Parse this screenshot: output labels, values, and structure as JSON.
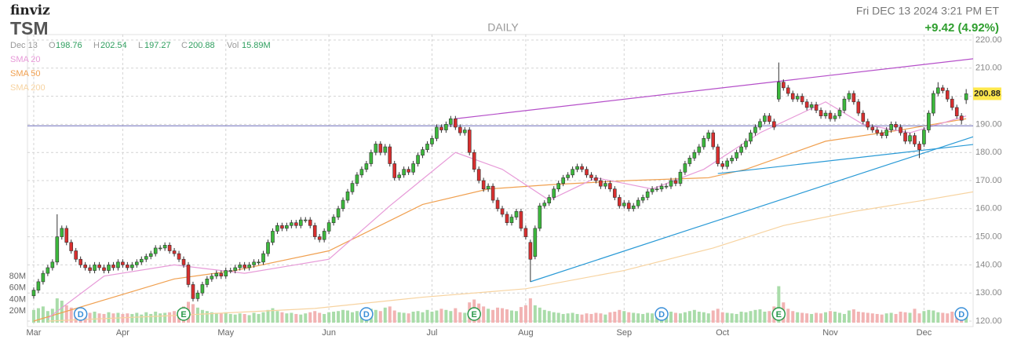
{
  "chart_data": {
    "type": "candlestick",
    "logo": "finviz",
    "symbol": "TSM",
    "period": "DAILY",
    "datetime": "Fri DEC 13 2024 3:21 PM ET",
    "change": "+9.42 (4.92%)",
    "change_color": "#2e9e2e",
    "quote": {
      "date": "Dec 13",
      "open_label": "O",
      "open": 198.76,
      "high_label": "H",
      "high": 202.54,
      "low_label": "L",
      "low": 197.27,
      "close_label": "C",
      "close": 200.88,
      "volume_label": "Vol",
      "volume": "15.89M"
    },
    "up_color": "#3cb83c",
    "down_color": "#d92f2f",
    "grid": true,
    "xlim": [
      -1.5,
      204.5
    ],
    "xticks": [
      {
        "value": 0,
        "label": "Mar"
      },
      {
        "value": 19,
        "label": "Apr"
      },
      {
        "value": 41,
        "label": "May"
      },
      {
        "value": 63,
        "label": "Jun"
      },
      {
        "value": 85,
        "label": "Jul"
      },
      {
        "value": 105,
        "label": "Aug"
      },
      {
        "value": 126,
        "label": "Sep"
      },
      {
        "value": 147,
        "label": "Oct"
      },
      {
        "value": 170,
        "label": "Nov"
      },
      {
        "value": 190,
        "label": "Dec"
      }
    ],
    "ylim": [
      120,
      220
    ],
    "yticks": [
      {
        "value": 120,
        "label": "120.00"
      },
      {
        "value": 130,
        "label": "130.00"
      },
      {
        "value": 140,
        "label": "140.00"
      },
      {
        "value": 150,
        "label": "150.00"
      },
      {
        "value": 160,
        "label": "160.00"
      },
      {
        "value": 170,
        "label": "170.00"
      },
      {
        "value": 180,
        "label": "180.00"
      },
      {
        "value": 190,
        "label": "190.00"
      },
      {
        "value": 200,
        "label": "200.00"
      },
      {
        "value": 210,
        "label": "210.00"
      },
      {
        "value": 220,
        "label": "220.00"
      }
    ],
    "open": [
      129,
      131,
      134,
      137,
      139,
      141,
      150,
      153,
      148,
      145,
      142,
      140,
      139,
      138,
      140,
      139,
      138,
      140,
      139,
      141,
      140,
      139,
      140,
      141,
      142,
      143,
      144,
      146,
      146,
      147,
      145,
      144,
      142,
      140,
      133,
      128,
      130,
      133,
      135,
      136,
      137,
      136,
      138,
      138,
      139,
      140,
      139,
      140,
      141,
      141,
      144,
      148,
      152,
      154,
      153,
      154,
      155,
      154,
      156,
      156,
      154,
      150,
      149,
      152,
      155,
      157,
      160,
      163,
      166,
      169,
      172,
      174,
      176,
      180,
      183,
      180,
      182,
      176,
      171,
      172,
      174,
      173,
      176,
      179,
      181,
      183,
      185,
      189,
      188,
      190,
      192,
      189,
      187,
      188,
      180,
      174,
      170,
      167,
      168,
      163,
      160,
      158,
      155,
      157,
      159,
      153,
      148,
      143,
      153,
      161,
      162,
      164,
      167,
      169,
      171,
      172,
      174,
      175,
      174,
      172,
      171,
      170,
      168,
      169,
      167,
      164,
      161,
      162,
      160,
      161,
      163,
      164,
      166,
      167,
      167,
      168,
      168,
      170,
      169,
      173,
      176,
      178,
      180,
      182,
      185,
      187,
      182,
      176,
      175,
      177,
      178,
      180,
      182,
      184,
      187,
      189,
      191,
      193,
      191,
      199,
      205,
      203,
      201,
      199,
      200,
      198,
      196,
      197,
      195,
      193,
      194,
      192,
      193,
      195,
      199,
      201,
      198,
      194,
      191,
      189,
      188,
      187,
      186,
      188,
      190,
      189,
      187,
      184,
      186,
      183,
      183,
      188,
      194,
      201,
      203,
      202,
      199,
      196,
      193,
      198.76
    ],
    "high": [
      132,
      135,
      138,
      140,
      142,
      158,
      154,
      154,
      149,
      146,
      143,
      141,
      140,
      141,
      141,
      140,
      141,
      141,
      142,
      142,
      141,
      141,
      142,
      143,
      144,
      145,
      147,
      147,
      148,
      148,
      146,
      145,
      143,
      141,
      134,
      131,
      134,
      136,
      137,
      138,
      138,
      139,
      139,
      140,
      141,
      141,
      141,
      142,
      142,
      145,
      149,
      153,
      155,
      155,
      155,
      156,
      156,
      157,
      157,
      157,
      155,
      151,
      153,
      156,
      158,
      161,
      164,
      167,
      170,
      173,
      175,
      177,
      181,
      184,
      184,
      183,
      183,
      177,
      173,
      175,
      175,
      177,
      180,
      182,
      184,
      186,
      190,
      190,
      191,
      193,
      193,
      190,
      189,
      189,
      181,
      175,
      171,
      169,
      169,
      164,
      161,
      159,
      158,
      160,
      160,
      154,
      149,
      154,
      162,
      163,
      165,
      168,
      170,
      172,
      173,
      175,
      176,
      176,
      175,
      173,
      172,
      171,
      170,
      170,
      168,
      165,
      163,
      163,
      162,
      164,
      165,
      167,
      168,
      168,
      169,
      169,
      171,
      171,
      174,
      177,
      179,
      181,
      183,
      186,
      188,
      188,
      183,
      177,
      178,
      179,
      181,
      183,
      185,
      188,
      190,
      192,
      194,
      194,
      192,
      212,
      206,
      204,
      202,
      201,
      201,
      199,
      198,
      198,
      196,
      195,
      195,
      194,
      196,
      200,
      202,
      202,
      199,
      195,
      192,
      190,
      189,
      188,
      189,
      191,
      191,
      190,
      188,
      187,
      187,
      184,
      189,
      195,
      202,
      205,
      204,
      203,
      200,
      197,
      194,
      202.54
    ],
    "low": [
      128,
      130,
      133,
      136,
      138,
      140,
      149,
      147,
      144,
      141,
      139,
      138,
      137,
      137,
      138,
      137,
      137,
      138,
      138,
      139,
      138,
      138,
      139,
      140,
      141,
      142,
      143,
      145,
      145,
      144,
      143,
      141,
      139,
      132,
      127,
      127,
      129,
      132,
      134,
      135,
      135,
      135,
      137,
      137,
      138,
      138,
      138,
      139,
      140,
      140,
      143,
      147,
      151,
      152,
      152,
      153,
      153,
      153,
      155,
      153,
      149,
      148,
      148,
      151,
      154,
      156,
      159,
      162,
      165,
      168,
      171,
      173,
      175,
      179,
      179,
      179,
      175,
      170,
      170,
      171,
      172,
      172,
      175,
      178,
      180,
      182,
      184,
      187,
      187,
      189,
      188,
      186,
      186,
      179,
      173,
      169,
      166,
      166,
      162,
      159,
      157,
      154,
      154,
      156,
      152,
      149,
      134,
      142,
      152,
      160,
      161,
      163,
      166,
      168,
      170,
      171,
      173,
      173,
      171,
      170,
      169,
      167,
      167,
      166,
      163,
      160,
      160,
      159,
      159,
      160,
      162,
      163,
      165,
      166,
      166,
      167,
      167,
      168,
      168,
      172,
      175,
      177,
      179,
      181,
      184,
      181,
      175,
      174,
      174,
      176,
      177,
      179,
      181,
      183,
      186,
      188,
      190,
      190,
      188,
      198,
      202,
      200,
      198,
      198,
      197,
      195,
      195,
      194,
      192,
      192,
      191,
      191,
      192,
      194,
      198,
      197,
      193,
      190,
      188,
      187,
      186,
      185,
      185,
      187,
      188,
      186,
      183,
      183,
      182,
      178,
      182,
      187,
      193,
      200,
      201,
      198,
      195,
      192,
      190,
      197.27
    ],
    "close": [
      131,
      134,
      137,
      139,
      141,
      150,
      153,
      148,
      145,
      142,
      140,
      139,
      138,
      140,
      139,
      138,
      140,
      139,
      141,
      140,
      139,
      140,
      141,
      142,
      143,
      144,
      146,
      146,
      147,
      145,
      144,
      142,
      140,
      133,
      128,
      130,
      133,
      135,
      136,
      137,
      136,
      138,
      138,
      139,
      140,
      139,
      140,
      141,
      141,
      144,
      148,
      152,
      154,
      153,
      154,
      155,
      154,
      156,
      156,
      154,
      150,
      149,
      152,
      155,
      157,
      160,
      163,
      166,
      169,
      172,
      174,
      176,
      180,
      183,
      180,
      182,
      176,
      171,
      172,
      174,
      173,
      176,
      179,
      181,
      183,
      185,
      189,
      188,
      190,
      192,
      189,
      187,
      188,
      180,
      174,
      170,
      167,
      168,
      163,
      160,
      158,
      155,
      157,
      159,
      153,
      150,
      142,
      153,
      161,
      162,
      164,
      167,
      169,
      171,
      172,
      174,
      175,
      174,
      172,
      171,
      170,
      168,
      169,
      167,
      164,
      161,
      162,
      160,
      161,
      163,
      164,
      166,
      167,
      167,
      168,
      168,
      170,
      169,
      173,
      176,
      178,
      180,
      182,
      185,
      187,
      182,
      176,
      175,
      177,
      178,
      180,
      182,
      184,
      187,
      189,
      191,
      193,
      191,
      189,
      205,
      203,
      201,
      199,
      200,
      198,
      196,
      197,
      195,
      193,
      194,
      192,
      193,
      195,
      199,
      201,
      198,
      194,
      191,
      189,
      188,
      187,
      186,
      188,
      190,
      189,
      187,
      184,
      186,
      183,
      181,
      188,
      194,
      201,
      203,
      202,
      199,
      196,
      193,
      191.46,
      200.88
    ],
    "last_price_color": "#ffe84d",
    "volume": {
      "up_color": "#a9dca9",
      "down_color": "#f2b3b3",
      "ylim": [
        0,
        80
      ],
      "yticks": [
        {
          "value": 20,
          "label": "20M"
        },
        {
          "value": 40,
          "label": "40M"
        },
        {
          "value": 60,
          "label": "60M"
        },
        {
          "value": 80,
          "label": "80M"
        }
      ],
      "values": [
        22,
        25,
        28,
        20,
        24,
        42,
        38,
        30,
        26,
        22,
        20,
        18,
        17,
        19,
        16,
        15,
        18,
        16,
        17,
        15,
        16,
        15,
        17,
        14,
        18,
        15,
        19,
        16,
        17,
        18,
        20,
        22,
        28,
        36,
        32,
        26,
        22,
        20,
        18,
        17,
        16,
        18,
        15,
        14,
        16,
        15,
        13,
        17,
        15,
        18,
        22,
        25,
        20,
        18,
        16,
        17,
        15,
        14,
        16,
        18,
        20,
        17,
        15,
        18,
        19,
        20,
        22,
        21,
        18,
        20,
        17,
        19,
        24,
        22,
        20,
        26,
        28,
        21,
        18,
        17,
        16,
        19,
        20,
        18,
        22,
        19,
        21,
        24,
        22,
        20,
        25,
        18,
        17,
        35,
        40,
        33,
        28,
        24,
        22,
        26,
        25,
        23,
        21,
        20,
        27,
        30,
        42,
        30,
        26,
        22,
        20,
        18,
        17,
        15,
        16,
        17,
        15,
        14,
        16,
        15,
        17,
        16,
        14,
        18,
        19,
        22,
        20,
        18,
        17,
        16,
        15,
        17,
        16,
        15,
        18,
        20,
        19,
        17,
        16,
        18,
        20,
        22,
        19,
        18,
        16,
        21,
        24,
        18,
        17,
        16,
        15,
        19,
        18,
        20,
        22,
        23,
        19,
        20,
        28,
        63,
        35,
        24,
        20,
        18,
        17,
        16,
        15,
        17,
        16,
        18,
        20,
        19,
        17,
        15,
        21,
        23,
        19,
        18,
        17,
        16,
        15,
        14,
        16,
        17,
        15,
        19,
        18,
        17,
        24,
        16,
        20,
        22,
        21,
        18,
        17,
        16,
        19,
        21,
        18,
        16
      ]
    },
    "sma": [
      {
        "name": "SMA 20",
        "color": "#e79ad8",
        "x": [
          3,
          15,
          30,
          45,
          63,
          76,
          90,
          100,
          110,
          120,
          132,
          143,
          155,
          169,
          177,
          187,
          199
        ],
        "values": [
          121,
          136,
          140,
          137,
          142,
          161,
          180,
          174,
          163,
          171,
          167,
          174,
          187,
          198,
          190,
          187,
          193
        ]
      },
      {
        "name": "SMA 50",
        "color": "#f0a050",
        "x": [
          0,
          30,
          43,
          63,
          83,
          97,
          110,
          127,
          144,
          152,
          169,
          185,
          199
        ],
        "values": [
          120,
          135,
          138,
          145,
          161.5,
          167,
          168.5,
          170,
          171,
          174,
          184,
          188,
          192
        ]
      },
      {
        "name": "SMA 200",
        "color": "#f7d3a0",
        "x": [
          3,
          30,
          60,
          83,
          105,
          126,
          145,
          160,
          175,
          190,
          204
        ],
        "values": [
          120,
          122,
          124.5,
          128.5,
          131.5,
          138,
          146,
          154,
          159,
          163,
          167
        ]
      }
    ],
    "trendlines": [
      {
        "color": "#b54fc9",
        "x": [
          90,
          204
        ],
        "values": [
          192,
          214
        ]
      },
      {
        "color": "#2a9ad6",
        "x": [
          106,
          204
        ],
        "values": [
          134,
          187.5
        ]
      },
      {
        "color": "#2a9ad6",
        "x": [
          146,
          204
        ],
        "values": [
          172.5,
          183.5
        ]
      }
    ],
    "hlines": [
      {
        "color": "#6a6ab8",
        "value": 189.5
      }
    ],
    "events": [
      {
        "label": "D",
        "x": 10,
        "color": "#3a8fd8"
      },
      {
        "label": "E",
        "x": 32,
        "color": "#2a9a4a"
      },
      {
        "label": "D",
        "x": 71,
        "color": "#3a8fd8"
      },
      {
        "label": "E",
        "x": 94,
        "color": "#2a9a4a"
      },
      {
        "label": "D",
        "x": 134,
        "color": "#3a8fd8"
      },
      {
        "label": "E",
        "x": 159,
        "color": "#2a9a4a"
      },
      {
        "label": "D",
        "x": 198,
        "color": "#3a8fd8"
      }
    ]
  }
}
